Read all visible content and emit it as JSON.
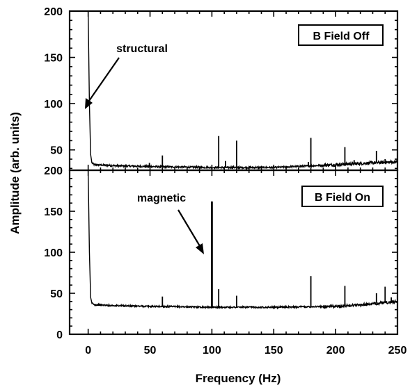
{
  "figure": {
    "ylabel": "Amplitude (arb. units)",
    "xlabel": "Frequency (Hz)"
  },
  "chart_data": [
    {
      "type": "line",
      "panel": "top",
      "legend_box": "B Field Off",
      "legend_placement": "top-right",
      "annotation": {
        "text": "structural",
        "points_to": [
          1.5,
          78
        ]
      },
      "xlim": [
        -15,
        250
      ],
      "ylim": [
        28,
        200
      ],
      "yticks": [
        50,
        100,
        150,
        200
      ],
      "xticks": [
        0,
        50,
        100,
        150,
        200,
        250
      ],
      "show_x_tick_labels": false,
      "grid": false,
      "baseline": [
        [
          0,
          200
        ],
        [
          1.0,
          100
        ],
        [
          2.0,
          45
        ],
        [
          3,
          36
        ],
        [
          5,
          34
        ],
        [
          20,
          33
        ],
        [
          50,
          32
        ],
        [
          100,
          31
        ],
        [
          150,
          31
        ],
        [
          200,
          34
        ],
        [
          230,
          36
        ],
        [
          250,
          37
        ]
      ],
      "peaks": [
        {
          "x": 49.5,
          "y": 36
        },
        {
          "x": 60,
          "y": 44
        },
        {
          "x": 105.5,
          "y": 65
        },
        {
          "x": 111,
          "y": 38
        },
        {
          "x": 120,
          "y": 60
        },
        {
          "x": 178,
          "y": 37
        },
        {
          "x": 180,
          "y": 63
        },
        {
          "x": 207.5,
          "y": 53
        },
        {
          "x": 215,
          "y": 39
        },
        {
          "x": 233,
          "y": 49
        },
        {
          "x": 240,
          "y": 40
        }
      ]
    },
    {
      "type": "line",
      "panel": "bottom",
      "legend_box": "B Field On",
      "legend_placement": "top-right",
      "annotation": {
        "text": "magnetic",
        "points_to": [
          97.5,
          98
        ]
      },
      "xlim": [
        -15,
        250
      ],
      "ylim": [
        0,
        200
      ],
      "yticks": [
        0,
        50,
        100,
        150,
        200
      ],
      "xticks": [
        0,
        50,
        100,
        150,
        200,
        250
      ],
      "show_x_tick_labels": true,
      "grid": false,
      "baseline": [
        [
          0,
          200
        ],
        [
          1.0,
          100
        ],
        [
          2.0,
          45
        ],
        [
          3,
          38
        ],
        [
          5,
          36
        ],
        [
          20,
          35
        ],
        [
          50,
          34
        ],
        [
          100,
          33
        ],
        [
          150,
          33
        ],
        [
          200,
          34
        ],
        [
          230,
          37
        ],
        [
          250,
          40
        ]
      ],
      "peaks": [
        {
          "x": 60,
          "y": 46
        },
        {
          "x": 100,
          "y": 162
        },
        {
          "x": 105.5,
          "y": 55
        },
        {
          "x": 120,
          "y": 47
        },
        {
          "x": 180,
          "y": 71
        },
        {
          "x": 207.5,
          "y": 59
        },
        {
          "x": 233,
          "y": 50
        },
        {
          "x": 240,
          "y": 58
        },
        {
          "x": 245,
          "y": 45
        }
      ]
    }
  ]
}
